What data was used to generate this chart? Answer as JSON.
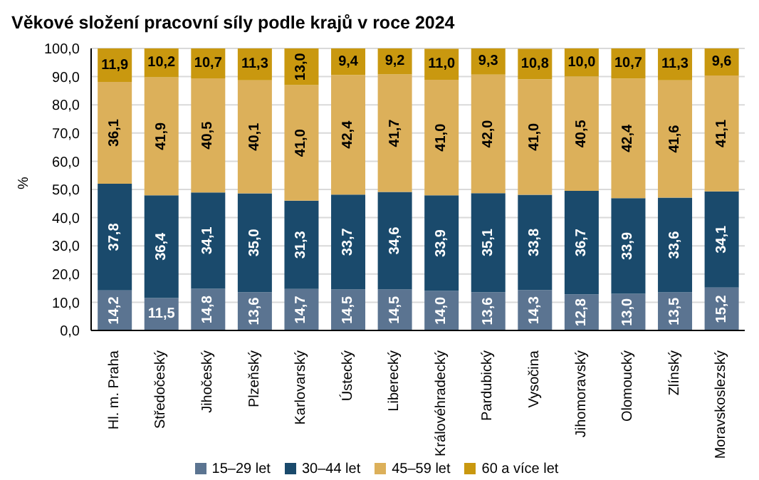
{
  "chart_data": {
    "type": "bar",
    "title": "Věkové složení pracovní síly podle krajů v roce 2024",
    "ylabel": "%",
    "stacked": true,
    "categories": [
      "Hl. m. Praha",
      "Středočeský",
      "Jihočeský",
      "Plzeňský",
      "Karlovarský",
      "Ústecký",
      "Liberecký",
      "Královéhradecký",
      "Pardubický",
      "Vysočina",
      "Jihomoravský",
      "Olomoucký",
      "Zlínský",
      "Moravskoslezský"
    ],
    "series": [
      {
        "name": "15–29 let",
        "color": "#5b7491",
        "values": [
          14.2,
          11.5,
          14.8,
          13.6,
          14.7,
          14.5,
          14.5,
          14.0,
          13.6,
          14.3,
          12.8,
          13.0,
          13.5,
          15.2
        ],
        "value_labels": [
          "14,2",
          "11,5",
          "14,8",
          "13,6",
          "14,7",
          "14,5",
          "14,5",
          "14,0",
          "13,6",
          "14,3",
          "12,8",
          "13,0",
          "13,5",
          "15,2"
        ]
      },
      {
        "name": "30–44 let",
        "color": "#1a4a6c",
        "values": [
          37.8,
          36.4,
          34.1,
          35.0,
          31.3,
          33.7,
          34.6,
          33.9,
          35.1,
          33.8,
          36.7,
          33.9,
          33.6,
          34.1
        ],
        "value_labels": [
          "37,8",
          "36,4",
          "34,1",
          "35,0",
          "31,3",
          "33,7",
          "34,6",
          "33,9",
          "35,1",
          "33,8",
          "36,7",
          "33,9",
          "33,6",
          "34,1"
        ]
      },
      {
        "name": "45–59 let",
        "color": "#dcb05a",
        "values": [
          36.1,
          41.9,
          40.5,
          40.1,
          41.0,
          42.4,
          41.7,
          41.0,
          42.0,
          41.0,
          40.5,
          42.4,
          41.6,
          41.1
        ],
        "value_labels": [
          "36,1",
          "41,9",
          "40,5",
          "40,1",
          "41,0",
          "42,4",
          "41,7",
          "41,0",
          "42,0",
          "41,0",
          "40,5",
          "42,4",
          "41,6",
          "41,1"
        ]
      },
      {
        "name": "60 a více let",
        "color": "#c9980f",
        "values": [
          11.9,
          10.2,
          10.7,
          11.3,
          13.0,
          9.4,
          9.2,
          11.0,
          9.3,
          10.8,
          10.0,
          10.7,
          11.3,
          9.6
        ],
        "value_labels": [
          "11,9",
          "10,2",
          "10,7",
          "11,3",
          "13,0",
          "9,4",
          "9,2",
          "11,0",
          "9,3",
          "10,8",
          "10,0",
          "10,7",
          "11,3",
          "9,6"
        ]
      }
    ],
    "ylim": [
      0,
      100
    ],
    "yticks": [
      {
        "value": 0,
        "label": "0,0"
      },
      {
        "value": 10,
        "label": "10,0"
      },
      {
        "value": 20,
        "label": "20,0"
      },
      {
        "value": 30,
        "label": "30,0"
      },
      {
        "value": 40,
        "label": "40,0"
      },
      {
        "value": 50,
        "label": "50,0"
      },
      {
        "value": 60,
        "label": "60,0"
      },
      {
        "value": 70,
        "label": "70,0"
      },
      {
        "value": 80,
        "label": "80,0"
      },
      {
        "value": 90,
        "label": "90,0"
      },
      {
        "value": 100,
        "label": "100,0"
      }
    ],
    "grid": "y",
    "legend": "bottom"
  }
}
